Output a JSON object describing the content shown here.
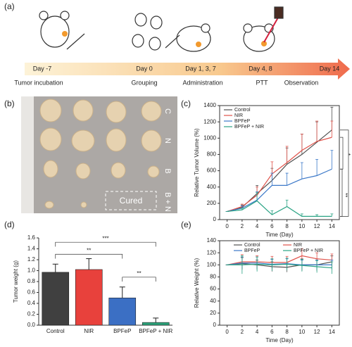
{
  "panel_labels": [
    "(a)",
    "(b)",
    "(c)",
    "(d)",
    "(e)"
  ],
  "timeline": {
    "days": [
      "Day -7",
      "Day 0",
      "Day 1, 3, 7",
      "Day 4, 8",
      "Day 14"
    ],
    "steps": [
      "Tumor incubation",
      "Grouping",
      "Administration",
      "PTT",
      "Observation"
    ]
  },
  "photo": {
    "rows": [
      "C",
      "N",
      "B",
      "B + N"
    ],
    "note": "Cured"
  },
  "chart_data": [
    {
      "type": "line",
      "xlabel": "Time (Day)",
      "ylabel": "Relative Tumor Volume (%)",
      "x": [
        0,
        2,
        4,
        6,
        8,
        10,
        12,
        14
      ],
      "xlim": [
        -1,
        15
      ],
      "xticks": [
        0,
        2,
        4,
        6,
        8,
        10,
        12,
        14
      ],
      "ylim": [
        0,
        1400
      ],
      "yticks": [
        0,
        200,
        400,
        600,
        800,
        1000,
        1200,
        1400
      ],
      "legend": "upper left",
      "legend_columns": 1,
      "error_direction": "up",
      "series": [
        {
          "name": "Control",
          "color": "#505050",
          "values": [
            100,
            150,
            320,
            480,
            680,
            800,
            950,
            1100
          ],
          "errors": [
            0,
            30,
            100,
            150,
            200,
            250,
            250,
            280
          ]
        },
        {
          "name": "NIR",
          "color": "#e0524a",
          "values": [
            100,
            160,
            300,
            560,
            700,
            850,
            960,
            1010
          ],
          "errors": [
            0,
            30,
            100,
            150,
            200,
            200,
            250,
            200
          ]
        },
        {
          "name": "BPFeP",
          "color": "#3b78c8",
          "values": [
            100,
            140,
            240,
            420,
            420,
            500,
            540,
            620
          ],
          "errors": [
            0,
            30,
            100,
            150,
            150,
            200,
            200,
            230
          ]
        },
        {
          "name": "BPFeP + NIR",
          "color": "#2aa384",
          "values": [
            100,
            120,
            230,
            60,
            160,
            40,
            40,
            40
          ],
          "errors": [
            0,
            20,
            100,
            50,
            80,
            30,
            20,
            30
          ]
        }
      ],
      "annotations": [
        {
          "text": "*"
        },
        {
          "text": "***"
        },
        {
          "text": "**"
        }
      ]
    },
    {
      "type": "bar",
      "ylabel": "Tumor weight (g)",
      "categories": [
        "Control",
        "NIR",
        "BPFeP",
        "BPFeP + NIR"
      ],
      "values": [
        0.97,
        1.02,
        0.5,
        0.05
      ],
      "errors": [
        0.15,
        0.2,
        0.2,
        0.08
      ],
      "colors": [
        "#404040",
        "#e8413c",
        "#3b6fc4",
        "#2ca27a"
      ],
      "ylim": [
        0,
        1.6
      ],
      "yticks": [
        {
          "value": 0,
          "label": "0.0"
        },
        0.2,
        0.4,
        0.6,
        0.8,
        {
          "value": 1,
          "label": "1.0"
        },
        1.2,
        1.4,
        1.6
      ],
      "annotations": [
        {
          "text": "***"
        },
        {
          "text": "**"
        },
        {
          "text": "**"
        }
      ]
    },
    {
      "type": "line",
      "xlabel": "Time (Day)",
      "ylabel": "Relative Weight (%)",
      "x": [
        0,
        2,
        4,
        6,
        8,
        10,
        12,
        14
      ],
      "xlim": [
        -1,
        15
      ],
      "xticks": [
        0,
        2,
        4,
        6,
        8,
        10,
        12,
        14
      ],
      "ylim": [
        0,
        140
      ],
      "yticks": [
        0,
        20,
        40,
        60,
        80,
        100,
        120,
        140
      ],
      "legend": "upper center",
      "legend_columns": 2,
      "error_direction": "both",
      "series": [
        {
          "name": "Control",
          "color": "#505050",
          "values": [
            100,
            102,
            100,
            97,
            96,
            100,
            100,
            105
          ],
          "errors": [
            0,
            10,
            8,
            8,
            8,
            10,
            10,
            10
          ]
        },
        {
          "name": "NIR",
          "color": "#e0524a",
          "values": [
            100,
            105,
            105,
            104,
            104,
            115,
            110,
            108
          ],
          "errors": [
            0,
            12,
            10,
            10,
            10,
            12,
            10,
            10
          ]
        },
        {
          "name": "BPFeP",
          "color": "#3b78c8",
          "values": [
            100,
            103,
            103,
            101,
            102,
            100,
            100,
            100
          ],
          "errors": [
            0,
            10,
            10,
            8,
            8,
            8,
            8,
            8
          ]
        },
        {
          "name": "BPFeP + NIR",
          "color": "#2aa384",
          "values": [
            100,
            100,
            101,
            100,
            101,
            99,
            97,
            95
          ],
          "errors": [
            0,
            15,
            12,
            10,
            10,
            10,
            10,
            10
          ]
        }
      ]
    }
  ]
}
